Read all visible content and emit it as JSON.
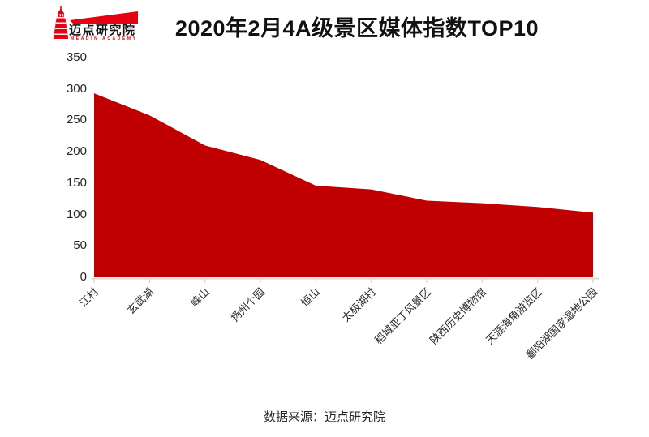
{
  "logo": {
    "name": "迈点研究院",
    "subtext": "MEADIN ACADEMY",
    "brand_color": "#e60012"
  },
  "header": {
    "title": "2020年2月4A级景区媒体指数TOP10"
  },
  "footer": {
    "source": "数据来源：迈点研究院"
  },
  "chart_data": {
    "type": "area",
    "title": "2020年2月4A级景区媒体指数TOP10",
    "categories": [
      "江村",
      "玄武湖",
      "峰山",
      "扬州个园",
      "恒山",
      "太极湖村",
      "稻城亚丁风景区",
      "陕西历史博物馆",
      "天涯海角游览区",
      "鄱阳湖国家湿地公园"
    ],
    "values": [
      293,
      258,
      210,
      187,
      146,
      140,
      122,
      118,
      112,
      103
    ],
    "xlabel": "",
    "ylabel": "",
    "ylim": [
      0,
      350
    ],
    "ytick_step": 50,
    "yticks": [
      0,
      50,
      100,
      150,
      200,
      250,
      300,
      350
    ],
    "x_label_rotation": 45,
    "grid": false,
    "legend": false,
    "area_color": "#c00000",
    "axis_color": "#d9d9d9",
    "label_color": "#262626"
  }
}
